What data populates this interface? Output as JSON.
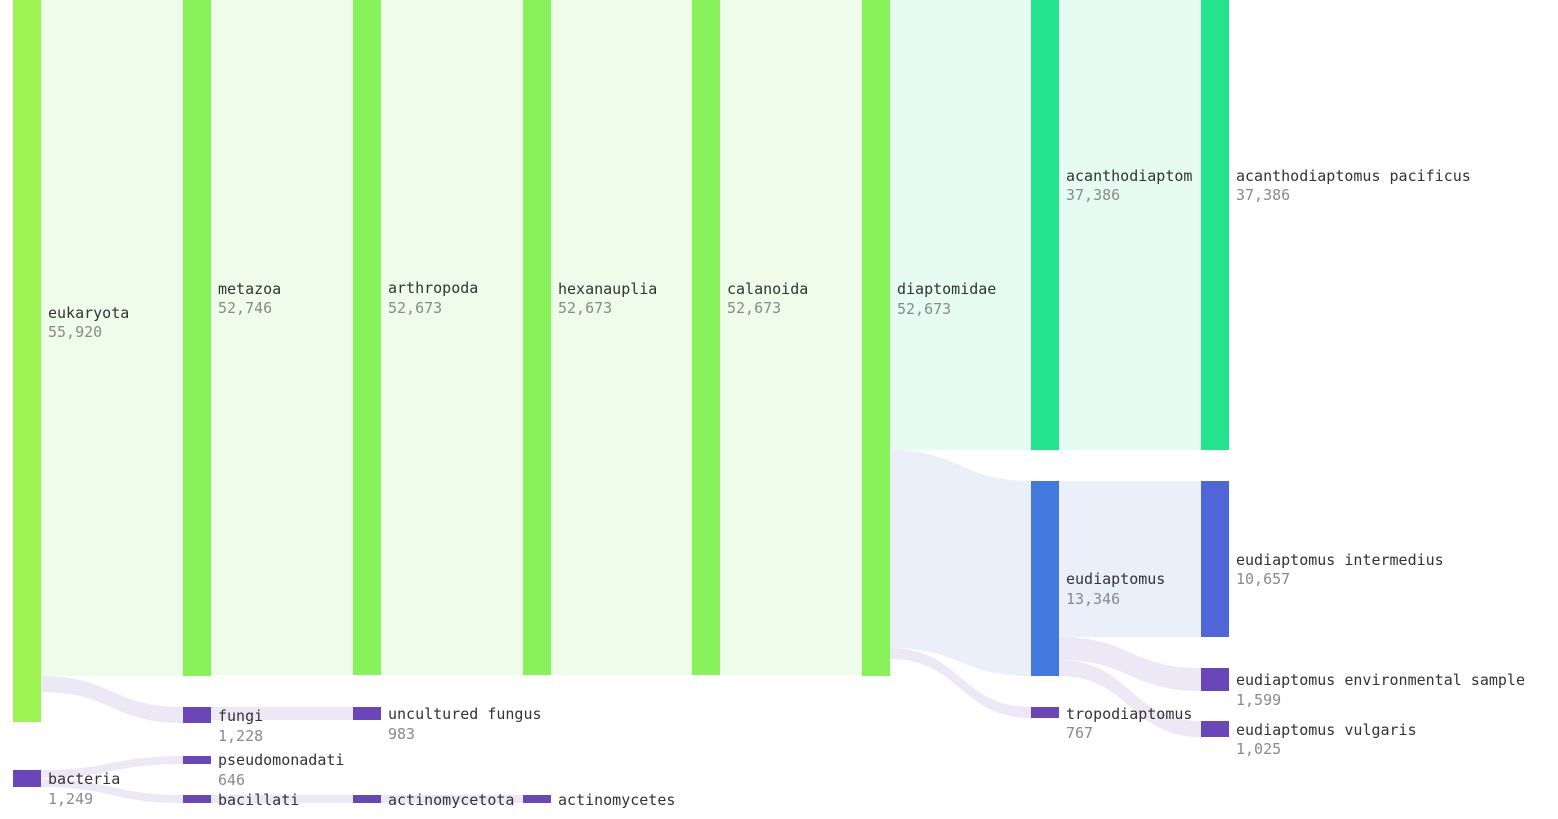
{
  "colors": {
    "green_main": "#88f25b",
    "green_root": "#9ef251",
    "teal": "#23e48c",
    "blue_genus": "#4378de",
    "blue_species": "#4f66d9",
    "purple": "#6b46b8",
    "flow_green": "#eefcea",
    "flow_teal": "#e6fbf1",
    "flow_blue": "#eaeff9",
    "flow_purple": "#ece8f6"
  },
  "nodes": {
    "eukaryota": {
      "label": "eukaryota",
      "value": "55,920"
    },
    "bacteria": {
      "label": "bacteria",
      "value": "1,249"
    },
    "metazoa": {
      "label": "metazoa",
      "value": "52,746"
    },
    "fungi": {
      "label": "fungi",
      "value": "1,228"
    },
    "pseudomonadati": {
      "label": "pseudomonadati",
      "value": "646"
    },
    "bacillati": {
      "label": "bacillati",
      "value": ""
    },
    "arthropoda": {
      "label": "arthropoda",
      "value": "52,673"
    },
    "uncultured_fungus": {
      "label": "uncultured fungus",
      "value": "983"
    },
    "actinomycetota": {
      "label": "actinomycetota",
      "value": ""
    },
    "hexanauplia": {
      "label": "hexanauplia",
      "value": "52,673"
    },
    "actinomycetes": {
      "label": "actinomycetes",
      "value": ""
    },
    "calanoida": {
      "label": "calanoida",
      "value": "52,673"
    },
    "diaptomidae": {
      "label": "diaptomidae",
      "value": "52,673"
    },
    "acanthodiaptomus": {
      "label": "acanthodiaptom",
      "value": "37,386"
    },
    "eudiaptomus": {
      "label": "eudiaptomus",
      "value": "13,346"
    },
    "tropodiaptomus": {
      "label": "tropodiaptomus",
      "value": "767"
    },
    "acanthodiaptomus_pacificus": {
      "label": "acanthodiaptomus pacificus",
      "value": "37,386"
    },
    "eudiaptomus_intermedius": {
      "label": "eudiaptomus intermedius",
      "value": "10,657"
    },
    "eudiaptomus_environmental_sample": {
      "label": "eudiaptomus environmental sample",
      "value": "1,599"
    },
    "eudiaptomus_vulgaris": {
      "label": "eudiaptomus vulgaris",
      "value": "1,025"
    }
  },
  "links": [
    {
      "source": "eukaryota",
      "target": "metazoa",
      "value": 52746
    },
    {
      "source": "eukaryota",
      "target": "fungi",
      "value": 1228
    },
    {
      "source": "bacteria",
      "target": "pseudomonadati",
      "value": 646
    },
    {
      "source": "bacteria",
      "target": "bacillati"
    },
    {
      "source": "metazoa",
      "target": "arthropoda",
      "value": 52673
    },
    {
      "source": "fungi",
      "target": "uncultured_fungus",
      "value": 983
    },
    {
      "source": "bacillati",
      "target": "actinomycetota"
    },
    {
      "source": "arthropoda",
      "target": "hexanauplia",
      "value": 52673
    },
    {
      "source": "actinomycetota",
      "target": "actinomycetes"
    },
    {
      "source": "hexanauplia",
      "target": "calanoida",
      "value": 52673
    },
    {
      "source": "calanoida",
      "target": "diaptomidae",
      "value": 52673
    },
    {
      "source": "diaptomidae",
      "target": "acanthodiaptomus",
      "value": 37386
    },
    {
      "source": "diaptomidae",
      "target": "eudiaptomus",
      "value": 13346
    },
    {
      "source": "diaptomidae",
      "target": "tropodiaptomus",
      "value": 767
    },
    {
      "source": "acanthodiaptomus",
      "target": "acanthodiaptomus_pacificus",
      "value": 37386
    },
    {
      "source": "eudiaptomus",
      "target": "eudiaptomus_intermedius",
      "value": 10657
    },
    {
      "source": "eudiaptomus",
      "target": "eudiaptomus_environmental_sample",
      "value": 1599
    },
    {
      "source": "eudiaptomus",
      "target": "eudiaptomus_vulgaris",
      "value": 1025
    }
  ]
}
